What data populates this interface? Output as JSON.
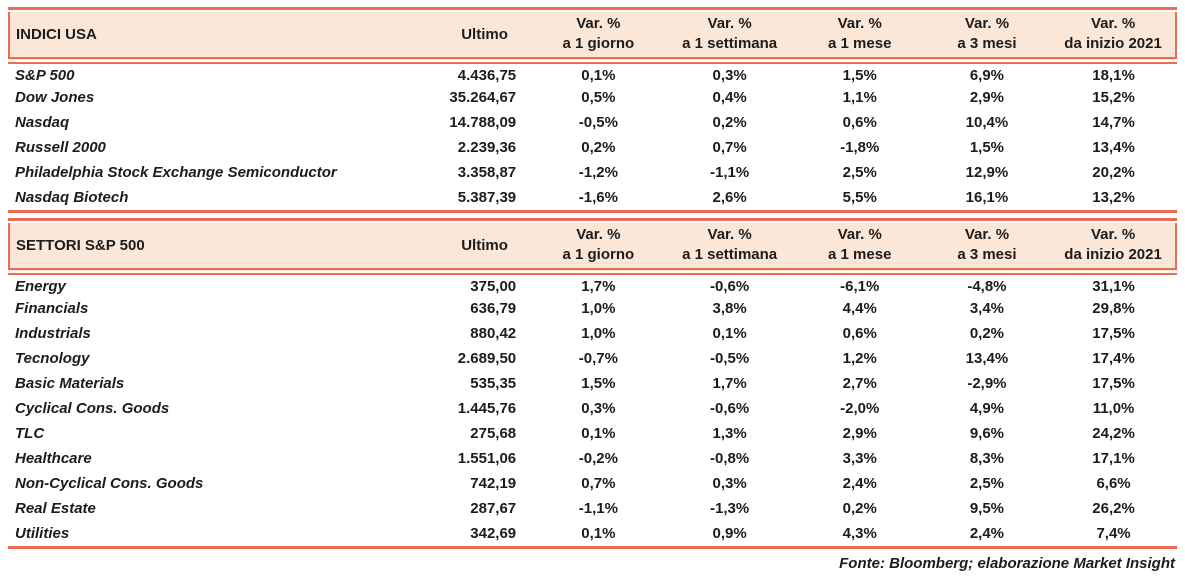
{
  "colors": {
    "accent_line": "#EA6B52",
    "header_bg": "#FBE7D8",
    "text": "#1C1C1C",
    "page_bg": "#FFFFFF"
  },
  "columns": {
    "ultimo": "Ultimo",
    "var_label": "Var. %",
    "periods": [
      "a 1 giorno",
      "a 1 settimana",
      "a 1 mese",
      "a 3 mesi",
      "da inizio 2021"
    ]
  },
  "tables": [
    {
      "title": "INDICI USA",
      "rows": [
        [
          "S&P 500",
          "4.436,75",
          "0,1%",
          "0,3%",
          "1,5%",
          "6,9%",
          "18,1%"
        ],
        [
          "Dow Jones",
          "35.264,67",
          "0,5%",
          "0,4%",
          "1,1%",
          "2,9%",
          "15,2%"
        ],
        [
          "Nasdaq",
          "14.788,09",
          "-0,5%",
          "0,2%",
          "0,6%",
          "10,4%",
          "14,7%"
        ],
        [
          "Russell 2000",
          "2.239,36",
          "0,2%",
          "0,7%",
          "-1,8%",
          "1,5%",
          "13,4%"
        ],
        [
          "Philadelphia Stock Exchange Semiconductor",
          "3.358,87",
          "-1,2%",
          "-1,1%",
          "2,5%",
          "12,9%",
          "20,2%"
        ],
        [
          "Nasdaq Biotech",
          "5.387,39",
          "-1,6%",
          "2,6%",
          "5,5%",
          "16,1%",
          "13,2%"
        ]
      ]
    },
    {
      "title": "SETTORI S&P 500",
      "rows": [
        [
          "Energy",
          "375,00",
          "1,7%",
          "-0,6%",
          "-6,1%",
          "-4,8%",
          "31,1%"
        ],
        [
          "Financials",
          "636,79",
          "1,0%",
          "3,8%",
          "4,4%",
          "3,4%",
          "29,8%"
        ],
        [
          "Industrials",
          "880,42",
          "1,0%",
          "0,1%",
          "0,6%",
          "0,2%",
          "17,5%"
        ],
        [
          "Tecnology",
          "2.689,50",
          "-0,7%",
          "-0,5%",
          "1,2%",
          "13,4%",
          "17,4%"
        ],
        [
          "Basic Materials",
          "535,35",
          "1,5%",
          "1,7%",
          "2,7%",
          "-2,9%",
          "17,5%"
        ],
        [
          "Cyclical Cons. Goods",
          "1.445,76",
          "0,3%",
          "-0,6%",
          "-2,0%",
          "4,9%",
          "11,0%"
        ],
        [
          "TLC",
          "275,68",
          "0,1%",
          "1,3%",
          "2,9%",
          "9,6%",
          "24,2%"
        ],
        [
          "Healthcare",
          "1.551,06",
          "-0,2%",
          "-0,8%",
          "3,3%",
          "8,3%",
          "17,1%"
        ],
        [
          "Non-Cyclical Cons. Goods",
          "742,19",
          "0,7%",
          "0,3%",
          "2,4%",
          "2,5%",
          "6,6%"
        ],
        [
          "Real Estate",
          "287,67",
          "-1,1%",
          "-1,3%",
          "0,2%",
          "9,5%",
          "26,2%"
        ],
        [
          "Utilities",
          "342,69",
          "0,1%",
          "0,9%",
          "4,3%",
          "2,4%",
          "7,4%"
        ]
      ]
    }
  ],
  "footer": {
    "source": "Fonte: Bloomberg; elaborazione Market Insight"
  }
}
